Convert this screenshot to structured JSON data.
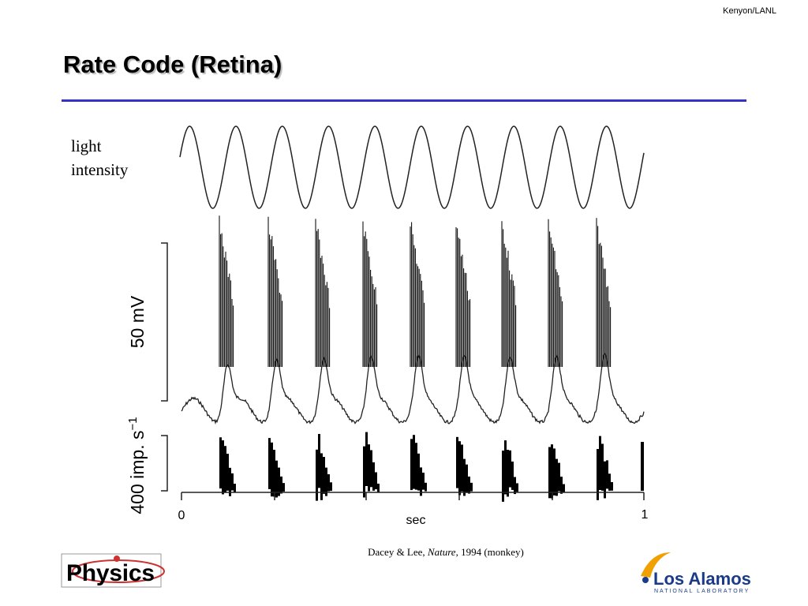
{
  "header": {
    "credit": "Kenyon/LANL",
    "title": "Rate Code (Retina)"
  },
  "figure": {
    "stimulus_label": [
      "light",
      "intensity"
    ],
    "voltage_scale": "50 mV",
    "rate_scale": "400 imp. s",
    "rate_scale_exponent": "−1",
    "x_start": "0",
    "x_label": "sec",
    "x_end": "1"
  },
  "caption": {
    "authors": "Dacey & Lee, ",
    "journal": "Nature",
    "details": ", 1994 (monkey)"
  },
  "logos": {
    "physics": "Physics",
    "lab_name": "Los Alamos",
    "lab_subtitle": "NATIONAL LABORATORY"
  }
}
